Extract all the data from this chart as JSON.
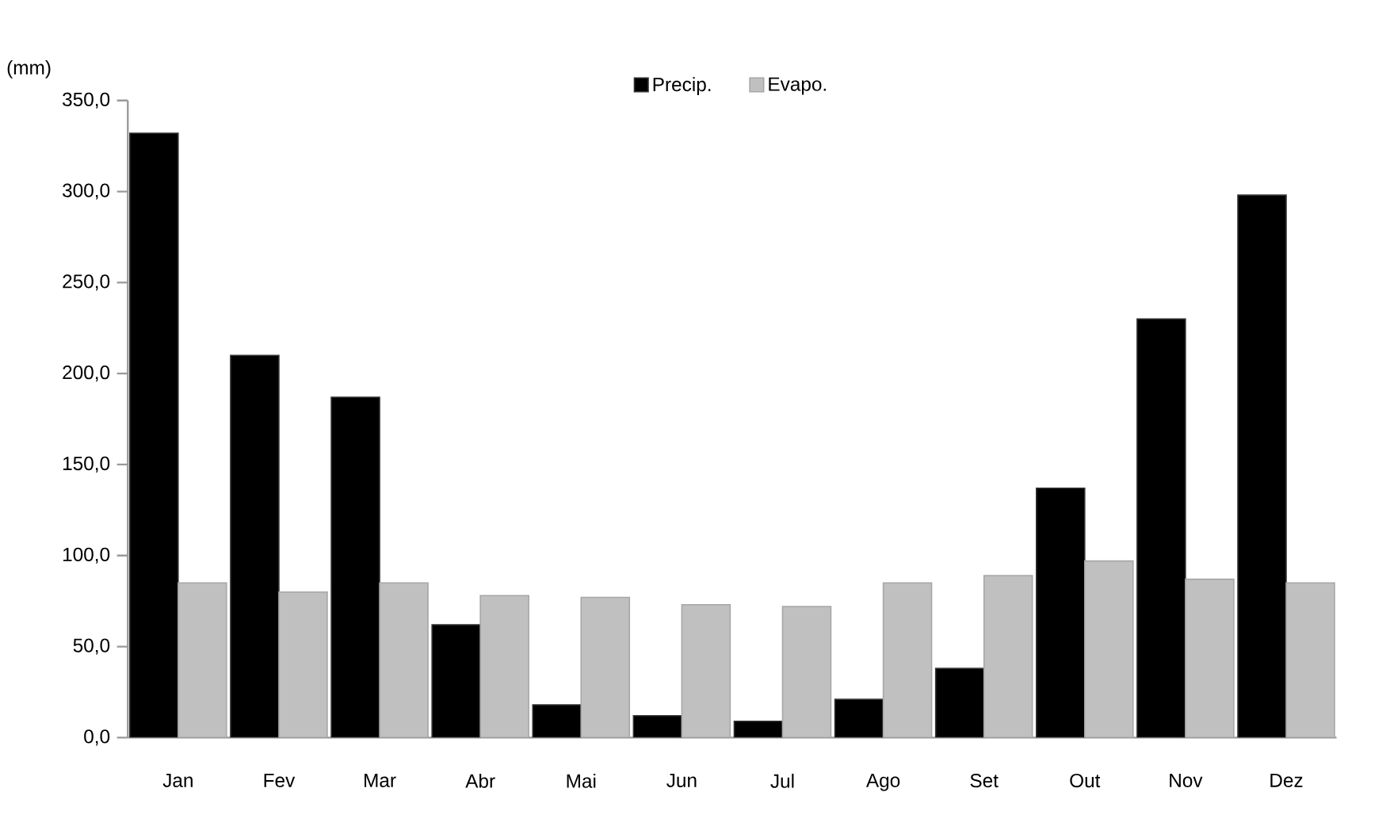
{
  "chart_data": {
    "type": "bar",
    "ylabel": "(mm)",
    "categories": [
      "Jan",
      "Fev",
      "Mar",
      "Abr",
      "Mai",
      "Jun",
      "Jul",
      "Ago",
      "Set",
      "Out",
      "Nov",
      "Dez"
    ],
    "series": [
      {
        "name": "Precip.",
        "color": "#000000",
        "values": [
          332,
          210,
          187,
          62,
          18,
          12,
          9,
          21,
          38,
          137,
          230,
          298
        ]
      },
      {
        "name": "Evapo.",
        "color": "#c0c0c0",
        "values": [
          85,
          80,
          85,
          78,
          77,
          73,
          72,
          85,
          89,
          97,
          87,
          85
        ]
      }
    ],
    "ylim": [
      0,
      350
    ],
    "yticks": [
      {
        "value": 0,
        "label": "0,0"
      },
      {
        "value": 50,
        "label": "50,0"
      },
      {
        "value": 100,
        "label": "100,0"
      },
      {
        "value": 150,
        "label": "150,0"
      },
      {
        "value": 200,
        "label": "200,0"
      },
      {
        "value": 250,
        "label": "250,0"
      },
      {
        "value": 300,
        "label": "300,0"
      },
      {
        "value": 350,
        "label": "350,0"
      }
    ],
    "grid": false,
    "legend": "top"
  }
}
